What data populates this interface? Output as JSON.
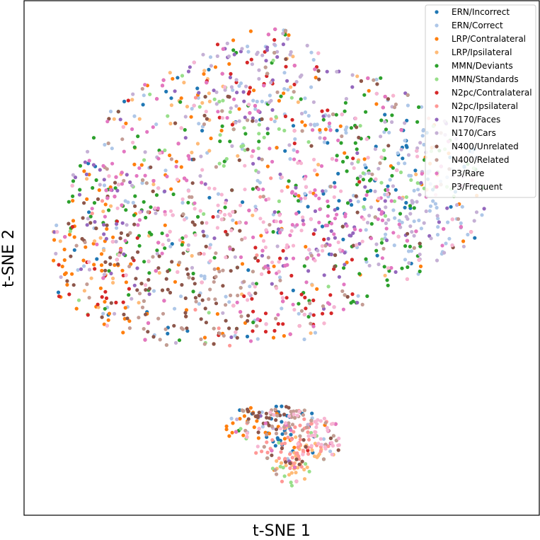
{
  "chart_data": {
    "type": "scatter",
    "xlabel": "t-SNE 1",
    "ylabel": "t-SNE 2",
    "xlim": [
      0,
      100
    ],
    "ylim": [
      0,
      100
    ],
    "grid": false,
    "axis_ticks": false,
    "legend_position": "top-right",
    "series": [
      {
        "name": "ERN/Incorrect",
        "color": "#1f77b4",
        "count": 110
      },
      {
        "name": "ERN/Correct",
        "color": "#aec7e8",
        "count": 200
      },
      {
        "name": "LRP/Contralateral",
        "color": "#ff7f0e",
        "count": 170
      },
      {
        "name": "LRP/Ipsilateral",
        "color": "#ffbb78",
        "count": 120
      },
      {
        "name": "MMN/Deviants",
        "color": "#2ca02c",
        "count": 190
      },
      {
        "name": "MMN/Standards",
        "color": "#98df8a",
        "count": 130
      },
      {
        "name": "N2pc/Contralateral",
        "color": "#d62728",
        "count": 160
      },
      {
        "name": "N2pc/Ipsilateral",
        "color": "#ff9896",
        "count": 110
      },
      {
        "name": "N170/Faces",
        "color": "#9467bd",
        "count": 150
      },
      {
        "name": "N170/Cars",
        "color": "#c5b0d5",
        "count": 150
      },
      {
        "name": "N400/Unrelated",
        "color": "#8c564b",
        "count": 170
      },
      {
        "name": "N400/Related",
        "color": "#c49c94",
        "count": 150
      },
      {
        "name": "P3/Rare",
        "color": "#e377c2",
        "count": 190
      },
      {
        "name": "P3/Frequent",
        "color": "#f7b6d2",
        "count": 190
      }
    ]
  }
}
